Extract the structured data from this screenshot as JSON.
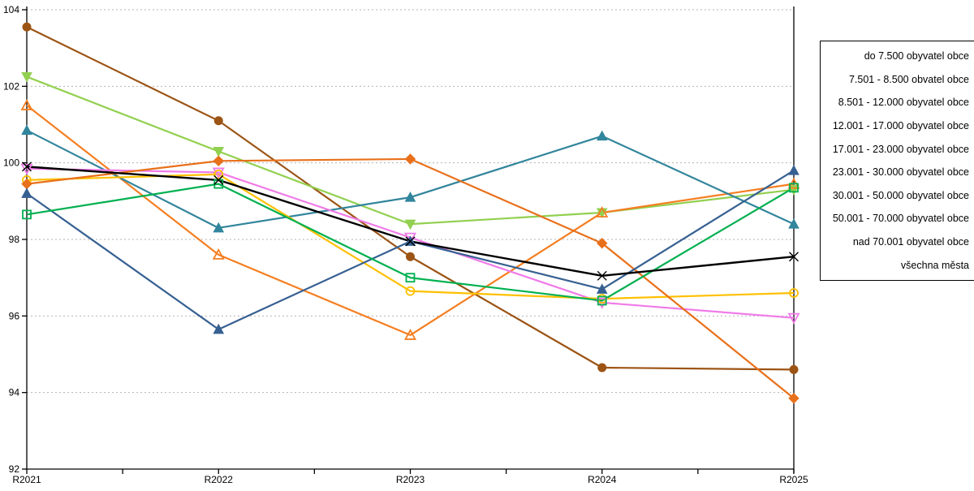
{
  "chart_data": {
    "type": "line",
    "title": "",
    "xlabel": "",
    "ylabel": "",
    "x_categories": [
      "R2021",
      "R2022",
      "R2023",
      "R2024",
      "R2025"
    ],
    "y_axis": {
      "min": 92,
      "max": 104,
      "tick_step": 2,
      "tick_labels": [
        "92",
        "94",
        "96",
        "98",
        "100",
        "102",
        "104"
      ]
    },
    "grid": "horizontal-dotted",
    "gridline_color": "#b3b3b3",
    "axis_color": "#000000",
    "legend_position": "right-outside",
    "series": [
      {
        "name": "do 7.500 obyvatel obce",
        "color": "#9C5415",
        "marker": "circle",
        "fill": "filled",
        "values": [
          103.55,
          101.1,
          97.55,
          94.65,
          94.6
        ]
      },
      {
        "name": "7.501 - 8.500 obvatel obce",
        "color": "#92D050",
        "marker": "triangle-down",
        "fill": "filled",
        "values": [
          102.25,
          100.3,
          98.4,
          98.7,
          99.3
        ]
      },
      {
        "name": "8.501 - 12.000 obyvatel obce",
        "color": "#F57E20",
        "marker": "triangle-up",
        "fill": "open",
        "values": [
          101.5,
          97.6,
          95.5,
          98.7,
          99.45
        ]
      },
      {
        "name": "12.001 - 17.000 obyvatel obce",
        "color": "#31859C",
        "marker": "triangle-up",
        "fill": "filled",
        "values": [
          100.85,
          98.3,
          99.1,
          100.7,
          98.4
        ]
      },
      {
        "name": "17.001 - 23.000 obyvatel obce",
        "color": "#F07BE8",
        "marker": "triangle-down",
        "fill": "open",
        "values": [
          99.85,
          99.75,
          98.05,
          96.35,
          95.95
        ]
      },
      {
        "name": "23.001 - 30.000 obyvatel obce",
        "color": "#FFC000",
        "marker": "circle",
        "fill": "open",
        "values": [
          99.55,
          99.7,
          96.65,
          96.45,
          96.6
        ]
      },
      {
        "name": "30.001 - 50.000 obyvatel obce",
        "color": "#E8701A",
        "marker": "diamond",
        "fill": "filled",
        "values": [
          99.45,
          100.05,
          100.1,
          97.9,
          93.85
        ]
      },
      {
        "name": "50.001 - 70.000 obyvatel obce",
        "color": "#366092",
        "marker": "triangle-up",
        "fill": "filled",
        "values": [
          99.2,
          95.65,
          97.95,
          96.7,
          99.8
        ]
      },
      {
        "name": "nad 70.001 obyvatel obce",
        "color": "#00B050",
        "marker": "square",
        "fill": "open",
        "values": [
          98.65,
          99.45,
          97.0,
          96.4,
          99.35
        ]
      },
      {
        "name": "všechna města",
        "color": "#000000",
        "marker": "x",
        "fill": "open",
        "values": [
          99.9,
          99.55,
          97.95,
          97.05,
          97.55
        ]
      }
    ]
  }
}
